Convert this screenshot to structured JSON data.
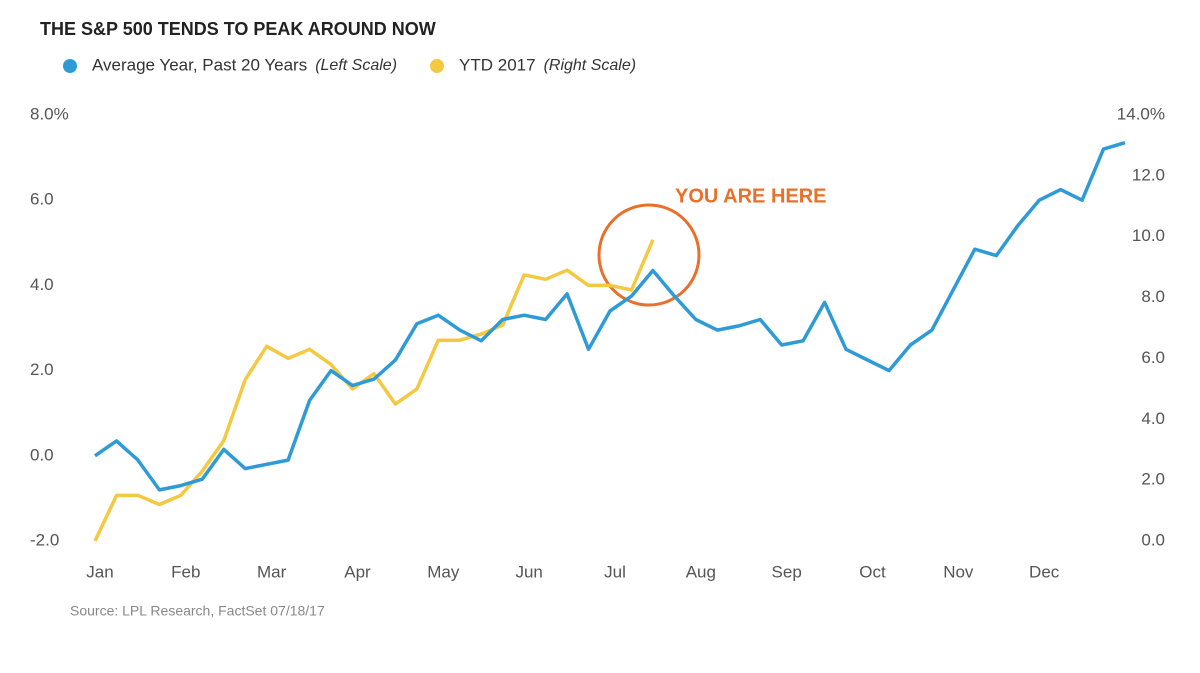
{
  "chart_data": {
    "type": "line",
    "title": "THE S&P 500 TENDS TO PEAK AROUND NOW",
    "source": "Source: LPL Research, FactSet  07/18/17",
    "annotation": "YOU ARE HERE",
    "categories": [
      "Jan",
      null,
      null,
      null,
      "Feb",
      null,
      null,
      null,
      "Mar",
      null,
      null,
      null,
      "Apr",
      null,
      null,
      null,
      "May",
      null,
      null,
      null,
      "Jun",
      null,
      null,
      null,
      "Jul",
      null,
      null,
      null,
      "Aug",
      null,
      null,
      null,
      "Sep",
      null,
      null,
      null,
      "Oct",
      null,
      null,
      null,
      "Nov",
      null,
      null,
      null,
      "Dec",
      null,
      null,
      null,
      null
    ],
    "series": [
      {
        "name": "Average Year, Past 20 Years",
        "scale_note": "(Left Scale)",
        "color": "#2e9bd6",
        "axis": "y",
        "values": [
          0.0,
          0.35,
          -0.1,
          -0.8,
          -0.7,
          -0.55,
          0.15,
          -0.3,
          -0.2,
          -0.1,
          1.3,
          2.0,
          1.65,
          1.8,
          2.25,
          3.1,
          3.3,
          2.95,
          2.7,
          3.2,
          3.3,
          3.2,
          3.8,
          2.5,
          3.4,
          3.75,
          4.35,
          3.75,
          3.2,
          2.95,
          3.05,
          3.2,
          2.6,
          2.7,
          3.6,
          2.5,
          2.25,
          2.0,
          2.6,
          2.95,
          3.9,
          4.85,
          4.7,
          5.4,
          6.0,
          6.25,
          6.0,
          7.2,
          7.35
        ]
      },
      {
        "name": "YTD 2017",
        "scale_note": "(Right Scale)",
        "color": "#f5c842",
        "axis": "y2",
        "values": [
          0.0,
          1.5,
          1.5,
          1.2,
          1.5,
          2.3,
          3.3,
          5.3,
          6.4,
          6.0,
          6.3,
          5.8,
          5.0,
          5.5,
          4.5,
          5.0,
          6.6,
          6.6,
          6.8,
          7.1,
          8.75,
          8.6,
          8.9,
          8.4,
          8.4,
          8.25,
          9.9,
          null,
          null,
          null,
          null,
          null,
          null,
          null,
          null,
          null,
          null,
          null,
          null,
          null,
          null,
          null,
          null,
          null,
          null,
          null,
          null,
          null,
          null
        ]
      }
    ],
    "ylim": [
      -2,
      8
    ],
    "yticks": [
      {
        "value": -2,
        "label": "-2.0"
      },
      {
        "value": 0,
        "label": "0.0"
      },
      {
        "value": 2,
        "label": "2.0"
      },
      {
        "value": 4,
        "label": "4.0"
      },
      {
        "value": 6,
        "label": "6.0"
      },
      {
        "value": 8,
        "label": "8.0%"
      }
    ],
    "y2lim": [
      0,
      14
    ],
    "y2ticks": [
      {
        "value": 0,
        "label": "0.0"
      },
      {
        "value": 2,
        "label": "2.0"
      },
      {
        "value": 4,
        "label": "4.0"
      },
      {
        "value": 6,
        "label": "6.0"
      },
      {
        "value": 8,
        "label": "8.0"
      },
      {
        "value": 10,
        "label": "10.0"
      },
      {
        "value": 12,
        "label": "12.0"
      },
      {
        "value": 14,
        "label": "14.0%"
      }
    ],
    "grid": false
  }
}
